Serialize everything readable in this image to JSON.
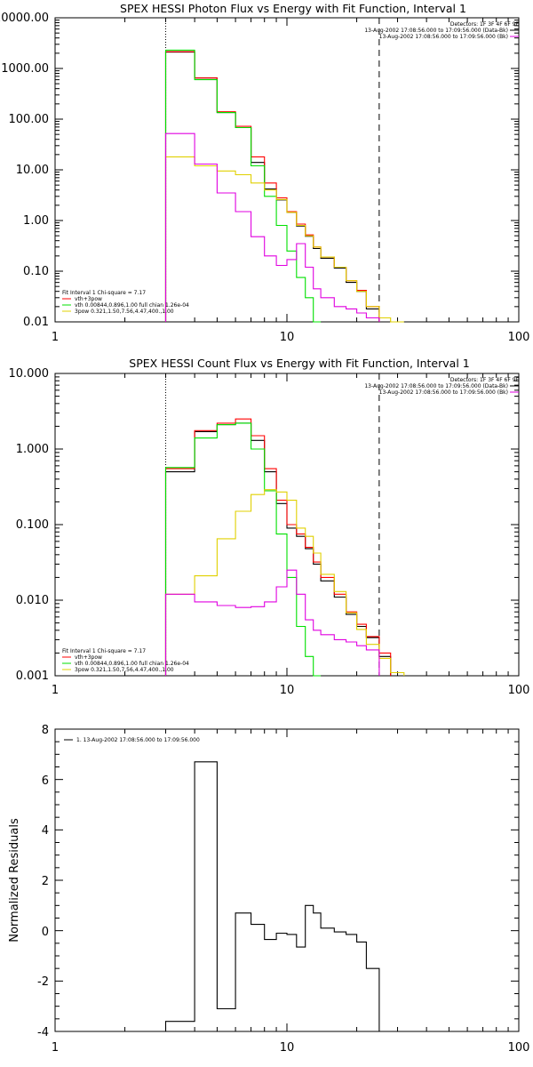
{
  "chart_data": [
    {
      "type": "line",
      "title": "SPEX HESSI Photon Flux vs Energy with Fit Function, Interval 1",
      "xlabel": "",
      "ylabel": "",
      "xscale": "log",
      "yscale": "log",
      "xlim": [
        1,
        100
      ],
      "ylim": [
        0.01,
        10000
      ],
      "xtick_labels": [
        "1",
        "10",
        "100"
      ],
      "ytick_labels": [
        "0.01",
        "0.10",
        "1.00",
        "10.00",
        "100.00",
        "1000.00",
        "10000.00"
      ],
      "legend_top_right": [
        "Detectors: 1F 3F 4F 6F 9F",
        "13-Aug-2002 17:08:56.000 to 17:09:56.000 (Data-Bk)",
        "13-Aug-2002 17:08:56.000 to 17:09:56.000 (Bk)"
      ],
      "legend_bottom_left": [
        "Fit Interval 1   Chi-square = 7.17",
        "vth+3pow",
        "vth 0.00844,0.896,1.00   full chian 1.26e-04",
        "3pow 0.321,1.50,7.56,4.47,400.,1.00"
      ],
      "vlines": {
        "dotted": 3,
        "dashed": 25
      },
      "edges": [
        3,
        4,
        5,
        6,
        7,
        8,
        9,
        10,
        11,
        12,
        13,
        14,
        16,
        18,
        20,
        22,
        25,
        28,
        32
      ],
      "series": [
        {
          "color": "#000000",
          "values": [
            2100,
            650,
            135,
            68,
            14,
            4.2,
            2.55,
            1.45,
            0.78,
            0.49,
            0.28,
            0.18,
            0.115,
            0.06,
            0.04,
            0.018,
            null,
            null
          ]
        },
        {
          "color": "#ff0000",
          "values": [
            2150,
            650,
            140,
            72,
            18,
            5.5,
            2.8,
            1.5,
            0.85,
            0.52,
            0.3,
            0.19,
            0.12,
            0.065,
            0.042,
            0.02,
            null,
            null
          ]
        },
        {
          "color": "#00e000",
          "values": [
            2300,
            600,
            135,
            68,
            12,
            3,
            0.8,
            0.25,
            0.075,
            0.03,
            0.01,
            null,
            null,
            null,
            null,
            null,
            null,
            null
          ]
        },
        {
          "color": "#e0d000",
          "values": [
            18,
            12,
            9.5,
            8,
            5.5,
            4,
            2.6,
            1.45,
            0.8,
            0.5,
            0.3,
            0.19,
            0.12,
            0.065,
            0.04,
            0.02,
            0.012,
            0.008
          ]
        },
        {
          "color": "#e000e0",
          "values": [
            52,
            13,
            3.5,
            1.5,
            0.48,
            0.2,
            0.13,
            0.17,
            0.35,
            0.12,
            0.045,
            0.03,
            0.02,
            0.018,
            0.015,
            0.012,
            null,
            null
          ]
        }
      ]
    },
    {
      "type": "line",
      "title": "SPEX HESSI Count Flux vs Energy with Fit Function, Interval 1",
      "xlabel": "",
      "ylabel": "",
      "xscale": "log",
      "yscale": "log",
      "xlim": [
        1,
        100
      ],
      "ylim": [
        0.001,
        10
      ],
      "xtick_labels": [
        "1",
        "10",
        "100"
      ],
      "ytick_labels": [
        "0.001",
        "0.010",
        "0.100",
        "1.000",
        "10.000"
      ],
      "legend_top_right": [
        "Detectors: 1F 3F 4F 6F 9F",
        "13-Aug-2002 17:08:56.000 to 17:09:56.000 (Data-Bk)",
        "13-Aug-2002 17:08:56.000 to 17:09:56.000 (Bk)"
      ],
      "legend_bottom_left": [
        "Fit Interval 1   Chi-square = 7.17",
        "vth+3pow",
        "vth 0.00844,0.896,1.00   full chian 1.26e-04",
        "3pow 0.321,1.50,7.56,4.47,400.,1.00"
      ],
      "vlines": {
        "dotted": 3,
        "dashed": 25
      },
      "edges": [
        3,
        4,
        5,
        6,
        7,
        8,
        9,
        10,
        11,
        12,
        13,
        14,
        16,
        18,
        20,
        22,
        25,
        28,
        32
      ],
      "series": [
        {
          "color": "#000000",
          "values": [
            0.5,
            1.7,
            2.1,
            2.2,
            1.3,
            0.5,
            0.19,
            0.09,
            0.07,
            0.048,
            0.03,
            0.018,
            0.011,
            0.0065,
            0.0045,
            0.0032,
            0.0018,
            null
          ]
        },
        {
          "color": "#ff0000",
          "values": [
            0.55,
            1.75,
            2.2,
            2.5,
            1.5,
            0.55,
            0.21,
            0.1,
            0.075,
            0.05,
            0.032,
            0.02,
            0.012,
            0.007,
            0.0048,
            0.0033,
            0.002,
            null
          ]
        },
        {
          "color": "#00e000",
          "values": [
            0.57,
            1.4,
            2.1,
            2.2,
            1.0,
            0.28,
            0.075,
            0.02,
            0.0045,
            0.0018,
            0.0009,
            null,
            null,
            null,
            null,
            null,
            null,
            null
          ]
        },
        {
          "color": "#e0d000",
          "values": [
            0.012,
            0.021,
            0.065,
            0.15,
            0.25,
            0.29,
            0.27,
            0.21,
            0.09,
            0.07,
            0.042,
            0.022,
            0.013,
            0.0068,
            0.0041,
            0.0026,
            0.0017,
            0.0011
          ]
        },
        {
          "color": "#e000e0",
          "values": [
            0.012,
            0.0095,
            0.0085,
            0.008,
            0.0082,
            0.0095,
            0.015,
            0.025,
            0.012,
            0.0055,
            0.004,
            0.0035,
            0.003,
            0.0028,
            0.0025,
            0.0022,
            null,
            null
          ]
        }
      ]
    },
    {
      "type": "line",
      "title": "",
      "xlabel": "",
      "ylabel": "Normalized Residuals",
      "xscale": "log",
      "yscale": "linear",
      "xlim": [
        1,
        100
      ],
      "ylim": [
        -4,
        8
      ],
      "xtick_labels": [
        "1",
        "10",
        "100"
      ],
      "ytick_labels": [
        "-4",
        "-2",
        "0",
        "2",
        "4",
        "6",
        "8"
      ],
      "legend": "1. 13-Aug-2002 17:08:56.000 to 17:09:56.000",
      "edges": [
        3,
        4,
        5,
        6,
        7,
        8,
        9,
        10,
        11,
        12,
        13,
        14,
        16,
        18,
        20,
        22,
        25
      ],
      "series": [
        {
          "color": "#000000",
          "values": [
            -3.6,
            6.7,
            -3.1,
            0.7,
            0.25,
            -0.35,
            -0.1,
            -0.15,
            -0.65,
            1.0,
            0.7,
            0.1,
            -0.05,
            -0.15,
            -0.45,
            -1.5
          ]
        }
      ]
    }
  ]
}
